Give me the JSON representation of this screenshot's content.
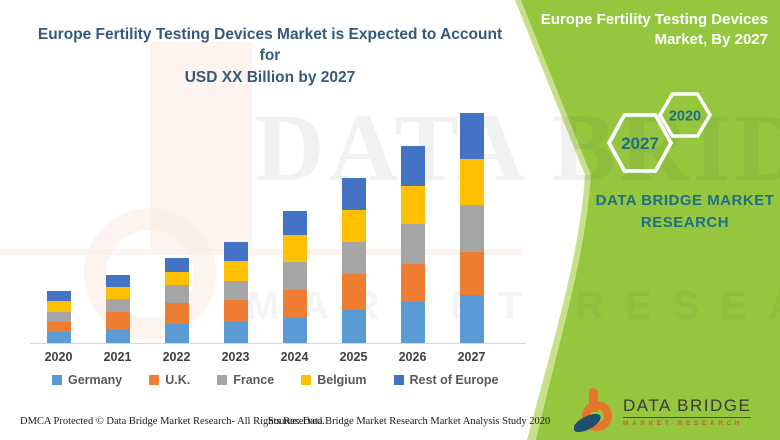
{
  "header": {
    "title_line1": "Europe Fertility Testing Devices Market is Expected to Account for",
    "title_line2": "USD XX Billion by 2027"
  },
  "side_panel": {
    "title_line1": "Europe Fertility Testing Devices",
    "title_line2": "Market, By 2027",
    "hexagons": [
      "2027",
      "2020"
    ],
    "brand_line1": "DATA BRIDGE MARKET",
    "brand_line2": "RESEARCH",
    "green_color": "#95c63e",
    "teal_color": "#1e6f86"
  },
  "logo": {
    "name": "DATA BRIDGE",
    "subtitle": "MARKET RESEARCH"
  },
  "watermarks": {
    "big_text": "DATA BRIDGE",
    "small_text": "MARKET RESEARCH"
  },
  "footer": {
    "left": "DMCA Protected © Data Bridge Market Research- All Rights Reserved.",
    "right": "Source: Data Bridge Market Research Market Analysis Study 2020"
  },
  "chart_data": {
    "type": "bar",
    "stacked": true,
    "title": "Europe Fertility Testing Devices Market is Expected to Account for USD XX Billion by 2027",
    "xlabel": "",
    "ylabel": "",
    "grid": false,
    "legend_position": "bottom",
    "values_note": "relative units estimated from bar heights; y-axis unlabeled (USD XX Billion)",
    "categories": [
      "2020",
      "2021",
      "2022",
      "2023",
      "2024",
      "2025",
      "2026",
      "2027"
    ],
    "series": [
      {
        "name": "Germany",
        "color": "#5B9BD5",
        "values": [
          11,
          14,
          19,
          22,
          26,
          33,
          41,
          48
        ]
      },
      {
        "name": "U.K.",
        "color": "#ED7D31",
        "values": [
          10,
          17,
          21,
          21,
          27,
          36,
          38,
          43
        ]
      },
      {
        "name": "France",
        "color": "#A5A5A5",
        "values": [
          10,
          13,
          18,
          19,
          28,
          32,
          40,
          47
        ]
      },
      {
        "name": "Belgium",
        "color": "#FFC000",
        "values": [
          11,
          12,
          13,
          20,
          27,
          32,
          38,
          46
        ]
      },
      {
        "name": "Rest of Europe",
        "color": "#4472C4",
        "values": [
          10,
          12,
          14,
          19,
          24,
          32,
          40,
          46
        ]
      }
    ],
    "totals": [
      52,
      68,
      85,
      101,
      132,
      165,
      197,
      230
    ]
  }
}
